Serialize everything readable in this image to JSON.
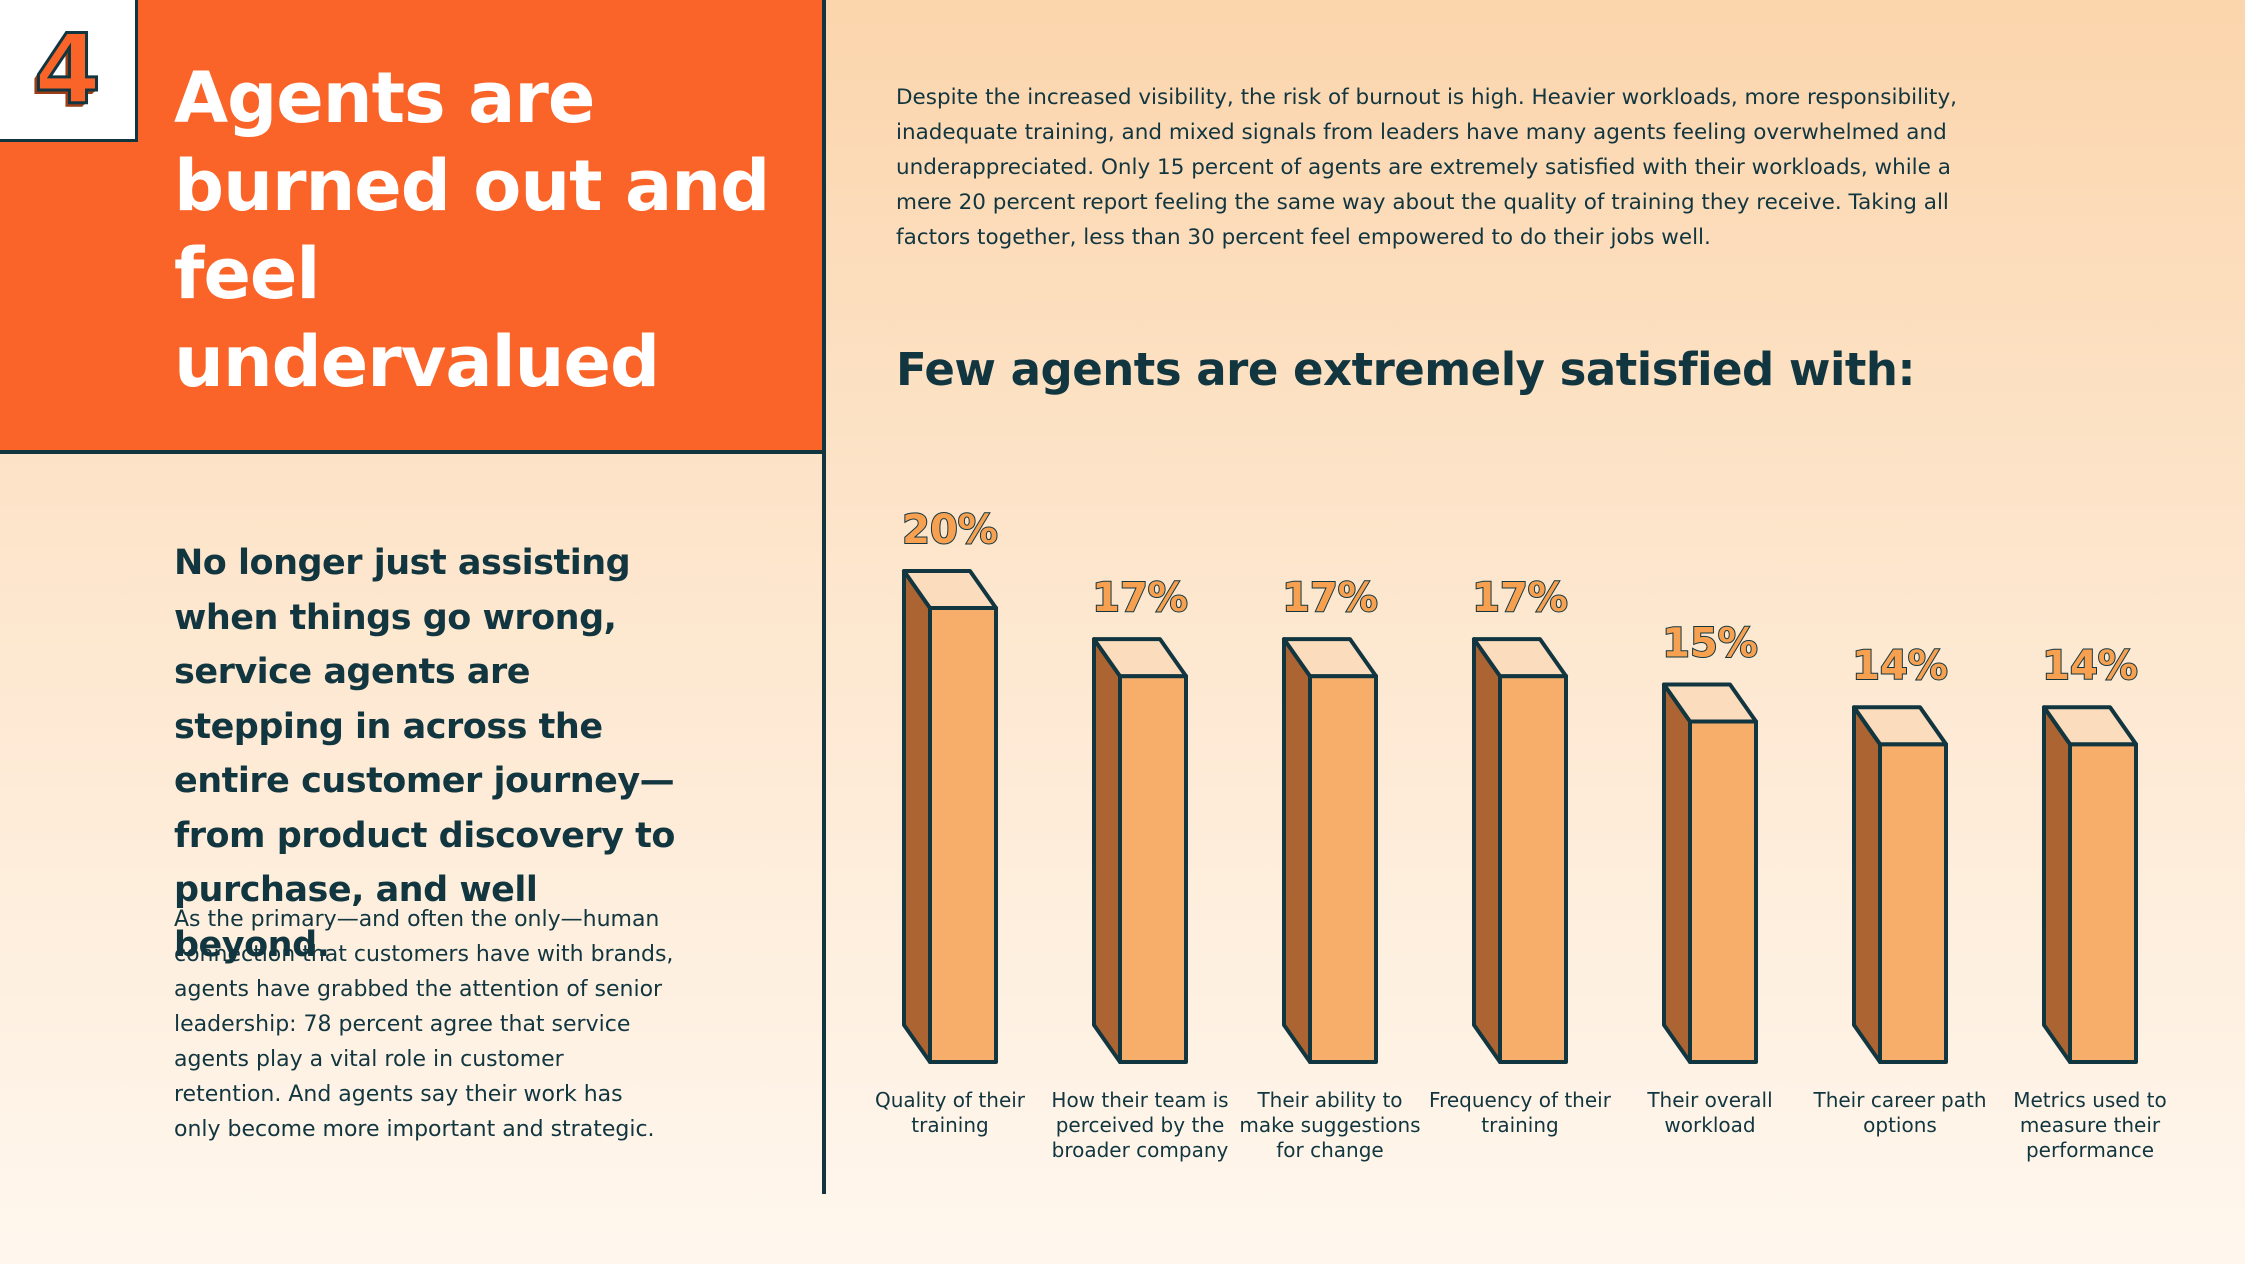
{
  "section_number": "4",
  "title": "Agents are burned out and feel undervalued",
  "subhead": "No longer just assisting when things go wrong, service agents are stepping in across the entire customer journey—from product discovery to purchase, and well beyond.",
  "body_left": "As the primary—and often the only—human connection that customers have with brands, agents have grabbed the attention of senior leadership: 78 percent agree that service agents play a vital role in customer retention. And agents say their work has only become more important and strategic.",
  "intro": "Despite the increased visibility, the risk of burnout is high. Heavier workloads, more responsibility, inadequate training, and mixed signals from leaders have many agents feeling overwhelmed and underappreciated. Only 15 percent of agents are extremely satisfied with their workloads, while a mere 20 percent report feeling the same way about the quality of training they receive. Taking all factors together, less than 30 percent feel empowered to do their jobs well.",
  "colors": {
    "accent": "#fa6428",
    "navy": "#123640",
    "bar_front": "#f6ae6a",
    "bar_side": "#ac6532",
    "bar_top": "#fbdcbd"
  },
  "chart_data": {
    "type": "bar",
    "title": "Few agents are extremely satisfied with:",
    "categories": [
      "Quality of their training",
      "How their team is perceived by the broader company",
      "Their ability to make suggestions for change",
      "Frequency of their training",
      "Their overall workload",
      "Their career path options",
      "Metrics used to measure their performance"
    ],
    "values": [
      20,
      17,
      17,
      17,
      15,
      14,
      14
    ],
    "value_labels": [
      "20%",
      "17%",
      "17%",
      "17%",
      "15%",
      "14%",
      "14%"
    ],
    "unit": "%",
    "ylim": [
      0,
      20
    ],
    "grid": false
  }
}
